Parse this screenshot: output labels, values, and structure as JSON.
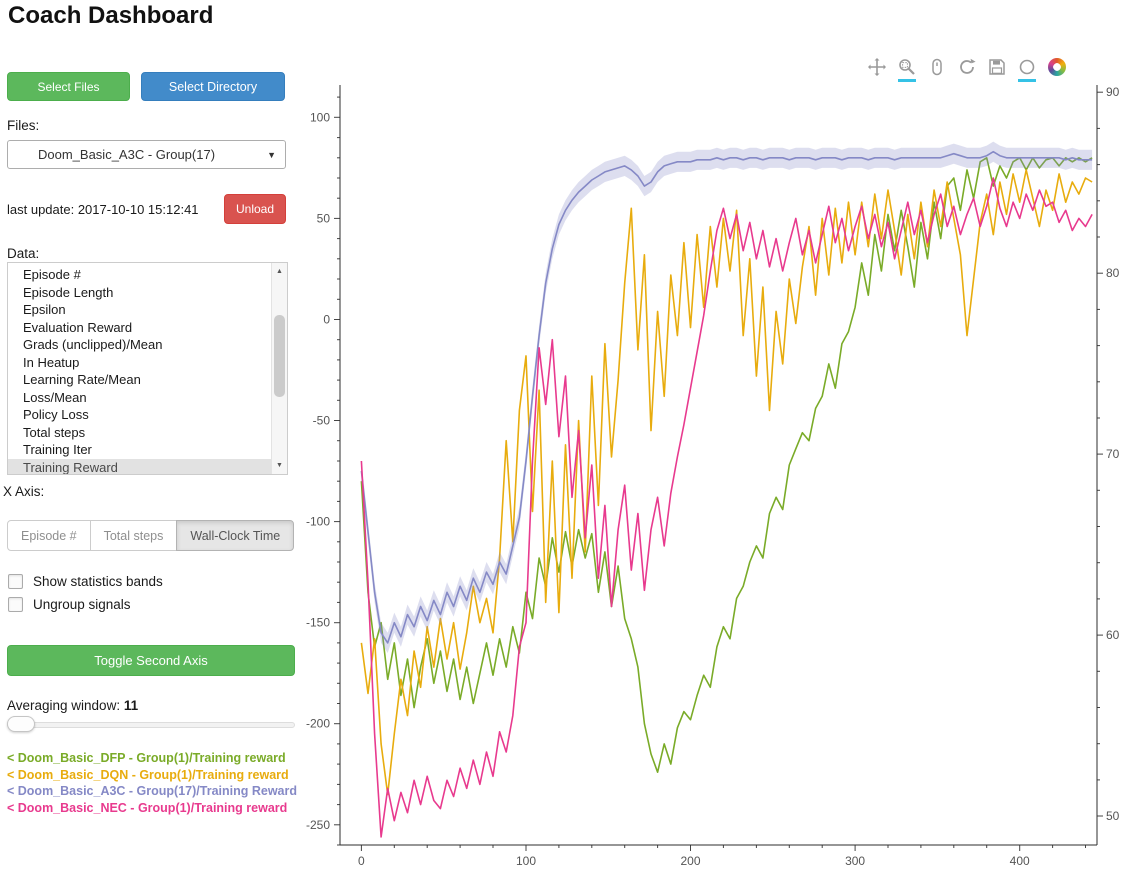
{
  "header": {
    "title": "Coach Dashboard"
  },
  "buttons": {
    "select_files": "Select Files",
    "select_directory": "Select Directory"
  },
  "files": {
    "label": "Files:",
    "selected": "Doom_Basic_A3C - Group(17)"
  },
  "status": {
    "last_update": "last update: 2017-10-10 15:12:41",
    "unload": "Unload"
  },
  "data_panel": {
    "label": "Data:",
    "items": [
      "Episode #",
      "Episode Length",
      "Epsilon",
      "Evaluation Reward",
      "Grads (unclipped)/Mean",
      "In Heatup",
      "Learning Rate/Mean",
      "Loss/Mean",
      "Policy Loss",
      "Total steps",
      "Training Iter",
      "Training Reward"
    ],
    "selected": "Training Reward"
  },
  "x_axis": {
    "label": "X Axis:",
    "options": [
      "Episode #",
      "Total steps",
      "Wall-Clock Time"
    ],
    "selected": "Wall-Clock Time"
  },
  "options": {
    "bands": {
      "label": "Show statistics bands",
      "checked": false
    },
    "ungroup": {
      "label": "Ungroup signals",
      "checked": false
    }
  },
  "actions": {
    "toggle_second_axis": "Toggle Second Axis"
  },
  "averaging": {
    "label": "Averaging window:",
    "value": "11"
  },
  "icons": {
    "chevron_down": "▼",
    "scroll_up": "▲",
    "scroll_down": "▼"
  },
  "legend": [
    {
      "label": "< Doom_Basic_DFP - Group(1)/Training reward",
      "color": "#7aab28"
    },
    {
      "label": "< Doom_Basic_DQN - Group(1)/Training reward",
      "color": "#e8ac0e"
    },
    {
      "label": "< Doom_Basic_A3C - Group(17)/Training Reward",
      "color": "#8589c6"
    },
    {
      "label": "< Doom_Basic_NEC - Group(1)/Training reward",
      "color": "#e83a8e"
    }
  ],
  "plot_toolbar": [
    {
      "name": "pan-icon",
      "active": false
    },
    {
      "name": "box-zoom-icon",
      "active": true
    },
    {
      "name": "wheel-zoom-icon",
      "active": false
    },
    {
      "name": "reset-icon",
      "active": false
    },
    {
      "name": "save-icon",
      "active": false
    },
    {
      "name": "hover-icon",
      "active": true
    },
    {
      "name": "bokeh-logo",
      "active": false
    }
  ],
  "chart_data": {
    "type": "line",
    "title": "",
    "xlabel": "",
    "ylabel": "",
    "x_axis_mode": "Wall-Clock Time",
    "grid": false,
    "x_ticks": [
      0,
      100,
      200,
      300,
      400
    ],
    "left_y_ticks": [
      100,
      50,
      0,
      -50,
      -100,
      -150,
      -200,
      -250
    ],
    "right_y_ticks": [
      90,
      80,
      70,
      60,
      50
    ],
    "x_range": [
      -13,
      447
    ],
    "left_y_range": [
      -260,
      116
    ],
    "right_y_range": [
      48.4,
      90.4
    ],
    "x_start": 0,
    "x_step": 4,
    "series": [
      {
        "name": "Doom_Basic_DFP - Group(1)/Training reward",
        "color": "#7aab28",
        "band": false,
        "y": [
          -80,
          -135,
          -162,
          -150,
          -178,
          -160,
          -186,
          -168,
          -192,
          -172,
          -158,
          -180,
          -164,
          -184,
          -168,
          -188,
          -172,
          -190,
          -175,
          -160,
          -176,
          -158,
          -172,
          -152,
          -165,
          -135,
          -148,
          -118,
          -132,
          -108,
          -125,
          -105,
          -122,
          -104,
          -118,
          -106,
          -135,
          -115,
          -142,
          -122,
          -148,
          -158,
          -172,
          -200,
          -215,
          -224,
          -210,
          -220,
          -202,
          -194,
          -198,
          -186,
          -176,
          -182,
          -162,
          -152,
          -158,
          -138,
          -132,
          -120,
          -112,
          -118,
          -96,
          -88,
          -94,
          -72,
          -64,
          -56,
          -60,
          -44,
          -38,
          -22,
          -34,
          -12,
          -6,
          6,
          28,
          12,
          42,
          24,
          52,
          34,
          54,
          36,
          16,
          48,
          30,
          58,
          40,
          66,
          70,
          54,
          74,
          60,
          78,
          80,
          66,
          76,
          70,
          78,
          80,
          74,
          80,
          75,
          79,
          80,
          76,
          80,
          78,
          80,
          78,
          80
        ]
      },
      {
        "name": "Doom_Basic_DQN - Group(1)/Training reward",
        "color": "#e8ac0e",
        "band": false,
        "y": [
          -160,
          -185,
          -158,
          -210,
          -235,
          -205,
          -178,
          -196,
          -164,
          -182,
          -152,
          -172,
          -148,
          -168,
          -150,
          -173,
          -155,
          -132,
          -150,
          -138,
          -155,
          -118,
          -60,
          -110,
          -45,
          -18,
          -95,
          -35,
          -140,
          -70,
          -145,
          -62,
          -128,
          -50,
          -115,
          -28,
          -92,
          -12,
          -68,
          -30,
          18,
          55,
          -15,
          32,
          -55,
          4,
          -38,
          22,
          -8,
          38,
          -4,
          42,
          6,
          46,
          16,
          50,
          24,
          54,
          -8,
          30,
          -28,
          16,
          -45,
          4,
          -22,
          20,
          -2,
          26,
          46,
          12,
          50,
          22,
          55,
          28,
          58,
          32,
          58,
          36,
          62,
          40,
          64,
          44,
          22,
          52,
          30,
          58,
          36,
          64,
          46,
          68,
          50,
          32,
          -8,
          20,
          48,
          62,
          42,
          68,
          52,
          72,
          58,
          74,
          60,
          46,
          64,
          54,
          72,
          58,
          68,
          62,
          70,
          68
        ]
      },
      {
        "name": "Doom_Basic_A3C - Group(17)/Training Reward",
        "color": "#8589c6",
        "band": true,
        "y": [
          -75,
          -105,
          -135,
          -155,
          -160,
          -150,
          -157,
          -146,
          -152,
          -142,
          -149,
          -139,
          -146,
          -135,
          -142,
          -132,
          -139,
          -128,
          -135,
          -125,
          -131,
          -120,
          -126,
          -112,
          -98,
          -70,
          -38,
          -8,
          18,
          35,
          47,
          54,
          59,
          63,
          66,
          69,
          71,
          73,
          74,
          75,
          76,
          74,
          71,
          66,
          68,
          73,
          76,
          77,
          78,
          78,
          78,
          79,
          79,
          79,
          80,
          79,
          80,
          80,
          79,
          80,
          80,
          79,
          80,
          80,
          80,
          79,
          80,
          80,
          80,
          79,
          80,
          80,
          80,
          79,
          80,
          80,
          80,
          79,
          80,
          80,
          80,
          79,
          80,
          80,
          80,
          80,
          80,
          80,
          80,
          81,
          82,
          81,
          80,
          80,
          80,
          81,
          83,
          81,
          80,
          80,
          80,
          80,
          80,
          80,
          80,
          80,
          80,
          79,
          80,
          79,
          79,
          79
        ]
      },
      {
        "name": "Doom_Basic_NEC - Group(1)/Training reward",
        "color": "#e83a8e",
        "band": false,
        "y": [
          -70,
          -130,
          -205,
          -256,
          -232,
          -248,
          -234,
          -244,
          -228,
          -240,
          -226,
          -238,
          -242,
          -228,
          -236,
          -222,
          -232,
          -218,
          -230,
          -214,
          -226,
          -204,
          -214,
          -196,
          -162,
          -150,
          -70,
          -14,
          -42,
          -10,
          -58,
          -28,
          -88,
          -55,
          -108,
          -72,
          -128,
          -92,
          -142,
          -104,
          -82,
          -124,
          -96,
          -134,
          -104,
          -88,
          -112,
          -86,
          -68,
          -52,
          -34,
          -16,
          2,
          24,
          44,
          55,
          40,
          52,
          34,
          48,
          30,
          44,
          26,
          40,
          24,
          38,
          50,
          32,
          44,
          28,
          42,
          56,
          38,
          50,
          34,
          46,
          56,
          40,
          52,
          36,
          48,
          30,
          44,
          58,
          42,
          54,
          38,
          52,
          62,
          46,
          56,
          42,
          52,
          60,
          46,
          56,
          70,
          55,
          46,
          58,
          50,
          62,
          54,
          64,
          56,
          58,
          48,
          54,
          44,
          50,
          46,
          52
        ]
      }
    ]
  }
}
